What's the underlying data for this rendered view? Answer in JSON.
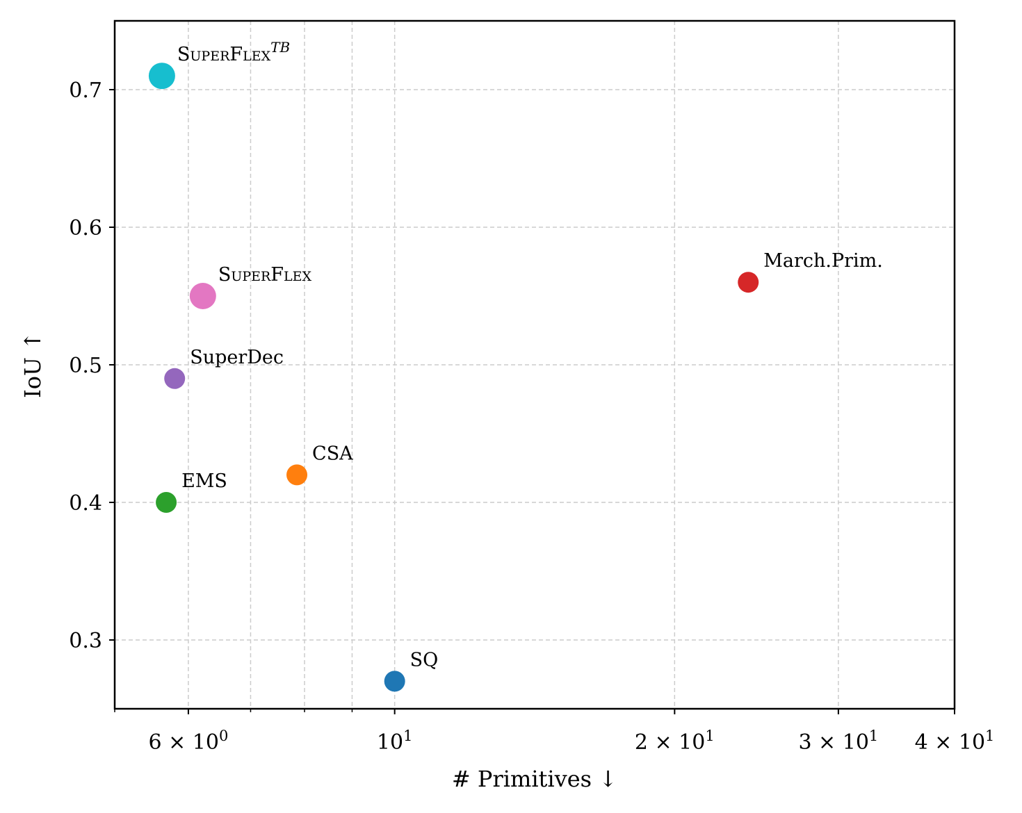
{
  "chart_data": {
    "type": "scatter",
    "xlabel": "# Primitives ↓",
    "ylabel": "IoU ↑",
    "xscale": "log",
    "xlim": [
      5,
      40
    ],
    "ylim": [
      0.25,
      0.75
    ],
    "grid": true,
    "xticks": [
      {
        "value": 6,
        "mant": "6 × 10",
        "exp": "0"
      },
      {
        "value": 10,
        "mant": "10",
        "exp": "1"
      },
      {
        "value": 20,
        "mant": "2 × 10",
        "exp": "1"
      },
      {
        "value": 30,
        "mant": "3 × 10",
        "exp": "1"
      },
      {
        "value": 40,
        "mant": "4 × 10",
        "exp": "1"
      }
    ],
    "xminor": [
      5,
      7,
      8,
      9
    ],
    "yticks": [
      {
        "value": 0.3,
        "label": "0.3"
      },
      {
        "value": 0.4,
        "label": "0.4"
      },
      {
        "value": 0.5,
        "label": "0.5"
      },
      {
        "value": 0.6,
        "label": "0.6"
      },
      {
        "value": 0.7,
        "label": "0.7"
      }
    ],
    "points": [
      {
        "name": "SuperFlex",
        "sup": "TB",
        "smallcaps": true,
        "x": 5.62,
        "y": 0.71,
        "color": "#17becf",
        "size": "large"
      },
      {
        "name": "SuperFlex",
        "smallcaps": true,
        "x": 6.22,
        "y": 0.55,
        "color": "#e377c2",
        "size": "large"
      },
      {
        "name": "SuperDec",
        "x": 5.8,
        "y": 0.49,
        "color": "#9467bd",
        "size": "normal"
      },
      {
        "name": "EMS",
        "x": 5.68,
        "y": 0.4,
        "color": "#2ca02c",
        "size": "normal"
      },
      {
        "name": "CSA",
        "x": 7.85,
        "y": 0.42,
        "color": "#ff7f0e",
        "size": "normal"
      },
      {
        "name": "SQ",
        "x": 10,
        "y": 0.27,
        "color": "#1f77b4",
        "size": "normal"
      },
      {
        "name": "March.Prim.",
        "x": 24,
        "y": 0.56,
        "color": "#d62728",
        "size": "normal"
      }
    ]
  }
}
